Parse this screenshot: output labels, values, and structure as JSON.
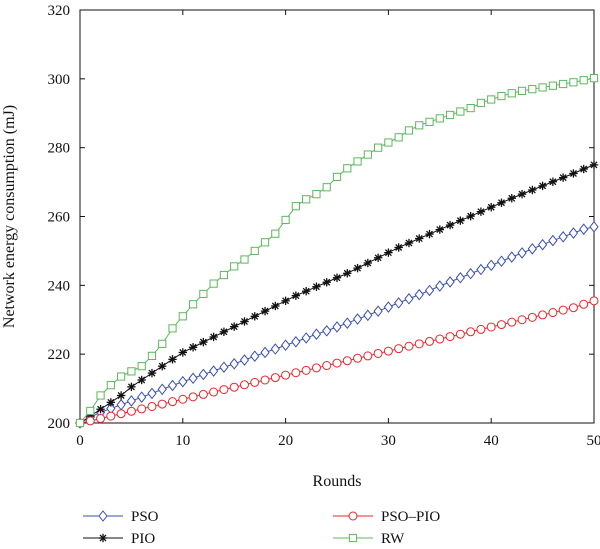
{
  "chart_data": {
    "type": "line",
    "title": "",
    "xlabel": "Rounds",
    "ylabel": "Network energy consumption (mJ)",
    "xlim": [
      0,
      50
    ],
    "ylim": [
      200,
      320
    ],
    "xticks": [
      0,
      10,
      20,
      30,
      40,
      50
    ],
    "yticks": [
      200,
      220,
      240,
      260,
      280,
      300,
      320
    ],
    "grid": false,
    "legend_position": "bottom",
    "x": [
      0,
      1,
      2,
      3,
      4,
      5,
      6,
      7,
      8,
      9,
      10,
      11,
      12,
      13,
      14,
      15,
      16,
      17,
      18,
      19,
      20,
      21,
      22,
      23,
      24,
      25,
      26,
      27,
      28,
      29,
      30,
      31,
      32,
      33,
      34,
      35,
      36,
      37,
      38,
      39,
      40,
      41,
      42,
      43,
      44,
      45,
      46,
      47,
      48,
      49,
      50
    ],
    "series": [
      {
        "name": "PSO",
        "marker": "diamond",
        "color": "#3a4fb0",
        "values": [
          200,
          201.7,
          203.1,
          204.2,
          205.3,
          206.4,
          207.5,
          208.6,
          209.8,
          210.9,
          212,
          213,
          214.1,
          215.1,
          216.2,
          217.2,
          218.3,
          219.4,
          220.5,
          221.5,
          222.6,
          223.6,
          224.7,
          225.8,
          226.8,
          227.9,
          229,
          230.2,
          231.3,
          232.5,
          233.7,
          234.9,
          236.1,
          237.3,
          238.5,
          239.8,
          241,
          242.2,
          243.4,
          244.6,
          245.8,
          247,
          248.2,
          249.4,
          250.6,
          251.8,
          253,
          254.1,
          255.2,
          256.3,
          257
        ]
      },
      {
        "name": "PIO",
        "marker": "asterisk",
        "color": "#111111",
        "values": [
          200,
          202,
          204,
          206,
          208,
          210.5,
          212.5,
          214.5,
          216.5,
          218.5,
          220.5,
          222,
          223.5,
          225,
          226.5,
          228,
          229.5,
          231,
          232.5,
          234,
          235.5,
          237,
          238.3,
          239.6,
          240.9,
          242.2,
          243.5,
          245,
          246.5,
          248,
          249.5,
          251,
          252.3,
          253.6,
          254.9,
          256.2,
          257.5,
          258.8,
          260.1,
          261.4,
          262.7,
          264,
          265.3,
          266.5,
          267.7,
          268.9,
          270.1,
          271.3,
          272.5,
          273.8,
          275
        ]
      },
      {
        "name": "PSO–PIO",
        "marker": "circle",
        "color": "#e8252a",
        "values": [
          200,
          200.6,
          201.3,
          202,
          202.7,
          203.4,
          204.1,
          204.8,
          205.5,
          206.2,
          206.9,
          207.6,
          208.3,
          209,
          209.7,
          210.4,
          211.1,
          211.8,
          212.5,
          213.2,
          213.9,
          214.6,
          215.3,
          216,
          216.7,
          217.4,
          218.1,
          218.8,
          219.5,
          220.2,
          220.9,
          221.6,
          222.3,
          223,
          223.7,
          224.4,
          225.1,
          225.8,
          226.5,
          227.2,
          227.9,
          228.6,
          229.3,
          230,
          230.7,
          231.4,
          232.1,
          232.8,
          233.5,
          234.5,
          235.5
        ]
      },
      {
        "name": "RW",
        "marker": "square",
        "color": "#5cb85c",
        "values": [
          200,
          203.5,
          208,
          211,
          213.5,
          215,
          216.5,
          219.5,
          223,
          227.5,
          231,
          234.5,
          237.5,
          240.5,
          243,
          245.5,
          247.5,
          250,
          252.5,
          255,
          259,
          263,
          265,
          266.5,
          268.5,
          271.5,
          274,
          276,
          278,
          280,
          281.5,
          283,
          285,
          286.5,
          287.5,
          288.5,
          289.5,
          290.5,
          291.5,
          293,
          294,
          295,
          295.8,
          296.5,
          297,
          297.5,
          298,
          298.5,
          299,
          299.6,
          300.2
        ]
      }
    ]
  }
}
